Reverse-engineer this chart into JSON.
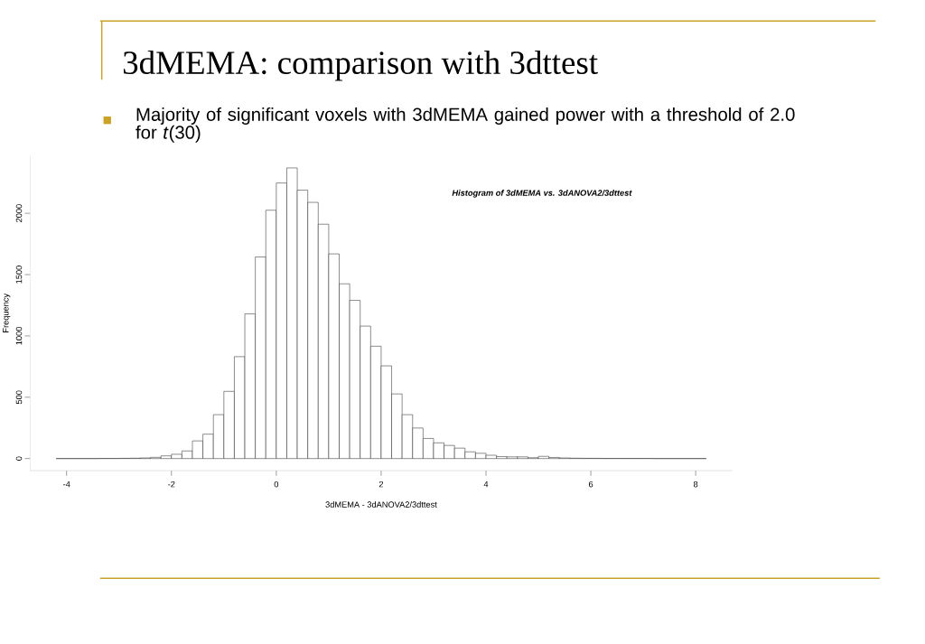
{
  "chart_data": {
    "type": "histogram",
    "title": "3dMEMA: comparison with 3dttest",
    "subtitle": "Majority of significant voxels with 3dMEMA gained power with a threshold of 2.0 for *t*(30)",
    "annotations": [
      "Histogram of 3dMEMA vs. 3dANOVA2/3dttest"
    ],
    "xlabel": "3dMEMA - 3dANOVA2/3dttest",
    "ylabel": "Frequency",
    "color": "#333333",
    "bins": [
      -4.2,
      -4.0,
      -3.8,
      -3.6,
      -3.4,
      -3.2,
      -3.0,
      -2.8,
      -2.6,
      -2.4,
      -2.2,
      -2.0,
      -1.8,
      -1.6,
      -1.4,
      -1.2,
      -1.0,
      -0.8,
      -0.6,
      -0.4,
      -0.2,
      0.0,
      0.2,
      0.4,
      0.6,
      0.8,
      1.0,
      1.2,
      1.4,
      1.6,
      1.8,
      2.0,
      2.2,
      2.4,
      2.6,
      2.8,
      3.0,
      3.2,
      3.4,
      3.6,
      3.8,
      4.0,
      4.2,
      4.4,
      4.6,
      4.8,
      5.0,
      5.2,
      5.4,
      5.6,
      5.8,
      6.0,
      6.2,
      6.4,
      6.6,
      6.8,
      7.0,
      7.2,
      7.4,
      7.6,
      7.8,
      8.0,
      8.2
    ],
    "values": [
      0,
      0,
      0,
      0,
      1,
      1,
      2,
      3,
      5,
      10,
      22,
      35,
      62,
      144,
      199,
      358,
      548,
      831,
      1180,
      1644,
      2025,
      2247,
      2370,
      2189,
      2089,
      1911,
      1669,
      1425,
      1290,
      1080,
      916,
      756,
      527,
      358,
      249,
      164,
      128,
      107,
      85,
      55,
      43,
      27,
      16,
      14,
      14,
      7,
      18,
      9,
      5,
      3,
      2,
      2,
      1,
      1,
      1,
      1,
      1,
      0,
      0,
      0,
      0,
      0
    ],
    "xlim": [
      -4.7,
      8.7
    ],
    "ylim": [
      -100,
      2470
    ],
    "xticks": [
      -4,
      -2,
      0,
      2,
      4,
      6,
      8
    ],
    "yticks": [
      0,
      500,
      1000,
      1500,
      2000
    ]
  }
}
